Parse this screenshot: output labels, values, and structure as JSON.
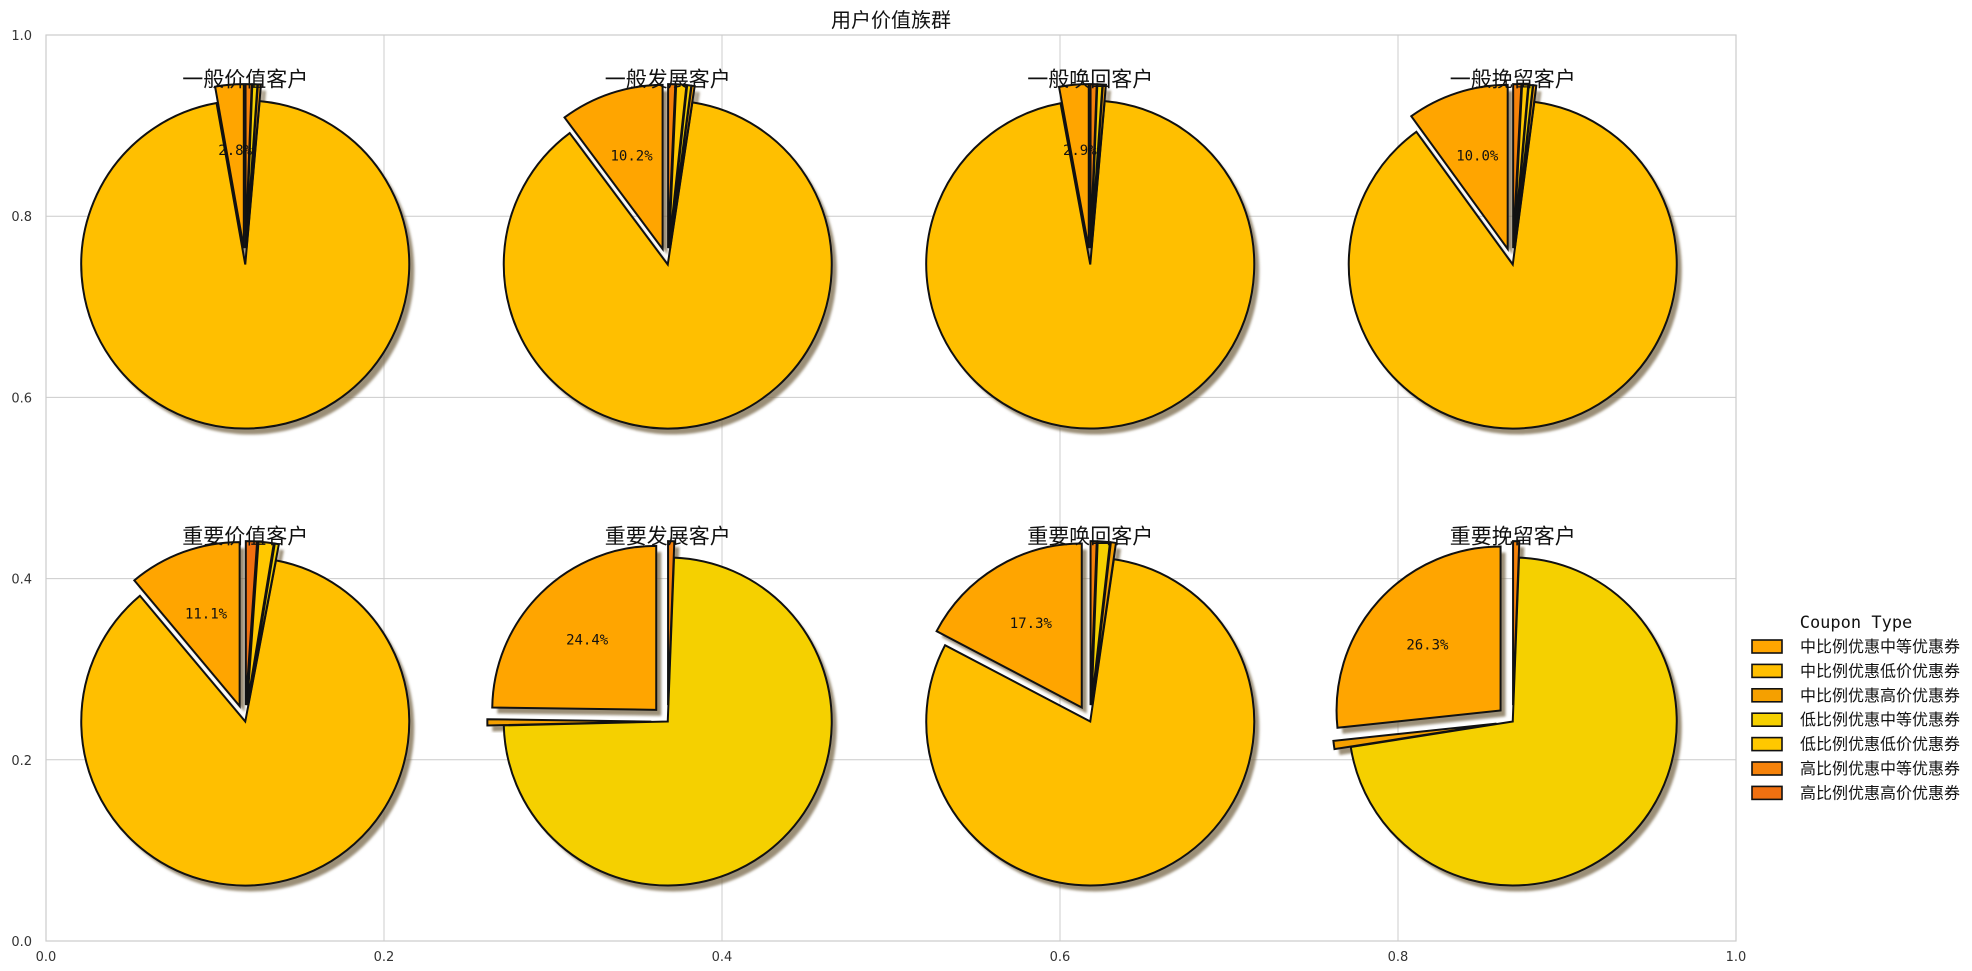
{
  "chart_data": {
    "type": "pie",
    "title": "用户价值族群",
    "xlim": [
      0.0,
      1.0
    ],
    "ylim": [
      0.0,
      1.0
    ],
    "x_ticks": [
      "0.0",
      "0.2",
      "0.4",
      "0.6",
      "0.8",
      "1.0"
    ],
    "y_ticks": [
      "0.0",
      "0.2",
      "0.4",
      "0.6",
      "0.8",
      "1.0"
    ],
    "grid": true,
    "legend": {
      "title": "Coupon Type",
      "placement": "center-right",
      "entries": [
        "中比例优惠中等优惠券",
        "中比例优惠低价优惠券",
        "中比例优惠高价优惠券",
        "低比例优惠中等优惠券",
        "低比例优惠低价优惠券",
        "高比例优惠中等优惠券",
        "高比例优惠高价优惠券"
      ]
    },
    "colors": [
      "#FFA500",
      "#FFBF00",
      "#F5A000",
      "#F5D000",
      "#FFC800",
      "#F5820A",
      "#F07010"
    ],
    "pies": [
      {
        "title": "一般价值客户",
        "values": [
          2.8,
          0,
          0.3,
          0.5,
          0,
          0.6,
          0
        ],
        "label": "2.8%",
        "remainder_category": 1
      },
      {
        "title": "一般发展客户",
        "values": [
          10.2,
          0,
          0.3,
          0.4,
          1.0,
          0.7,
          0
        ],
        "label": "10.2%",
        "remainder_category": 1
      },
      {
        "title": "一般唤回客户",
        "values": [
          2.9,
          0,
          0.3,
          0.5,
          0,
          0.6,
          0
        ],
        "label": "2.9%",
        "remainder_category": 1
      },
      {
        "title": "一般挽留客户",
        "values": [
          10.0,
          0,
          0.3,
          0.4,
          0.6,
          0.8,
          0
        ],
        "label": "10.0%",
        "remainder_category": 1
      },
      {
        "title": "重要价值客户",
        "values": [
          11.1,
          0,
          0,
          0.4,
          1.5,
          0,
          1.1
        ],
        "label": "11.1%",
        "remainder_category": 1
      },
      {
        "title": "重要发展客户",
        "values": [
          24.4,
          0,
          0.6,
          1.5,
          0,
          0.6,
          0
        ],
        "label": "24.4%",
        "remainder_category": 3
      },
      {
        "title": "重要唤回客户",
        "values": [
          17.3,
          0,
          0.5,
          1.2,
          0,
          0.6,
          0
        ],
        "label": "17.3%",
        "remainder_category": 1
      },
      {
        "title": "重要挽留客户",
        "values": [
          26.3,
          0,
          0.8,
          1.4,
          0,
          0.6,
          0
        ],
        "label": "26.3%",
        "remainder_category": 3
      }
    ]
  }
}
